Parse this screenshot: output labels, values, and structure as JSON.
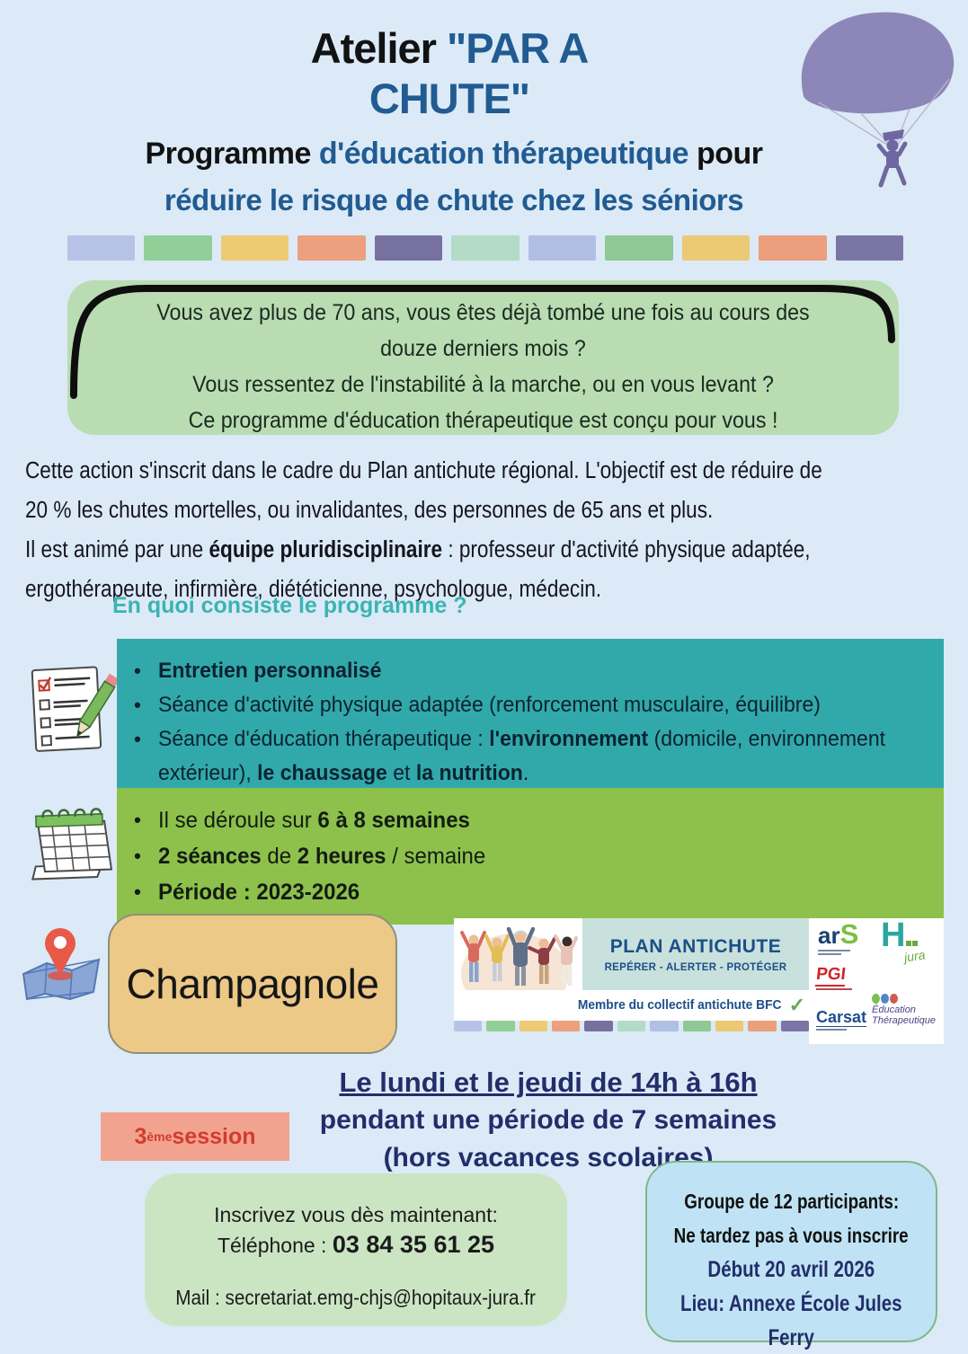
{
  "palette": {
    "page_bg": "#dbeaf6",
    "title_blue": "#215b92",
    "intro_green": "#b9dcb2",
    "teal_heading": "#3ab4b2",
    "program_teal": "#31a9ab",
    "schedule_green": "#8dc14c",
    "location_tan": "#ecc987",
    "navy": "#232d6a",
    "badge_salmon": "#f2a390",
    "badge_red": "#d23b2e",
    "contact_green": "#cbe5c3",
    "info_blue": "#bfe3f4",
    "parachute_purple": "#8d86b8"
  },
  "header": {
    "title_black": "Atelier ",
    "title_blue_1": "\"PAR A",
    "title_blue_2": "CHUTE\"",
    "subtitle_1_black": "Programme ",
    "subtitle_1_blue": "d'éducation thérapeutique ",
    "subtitle_1_black2": "pour",
    "subtitle_2": "réduire le risque de chute chez les séniors"
  },
  "strip_colors": [
    "#b7c3e6",
    "#92ce97",
    "#eeca72",
    "#eda07d",
    "#77719f",
    "#b3dbc6",
    "#b0bfe3",
    "#8ec895",
    "#ecc974",
    "#eb9f7d",
    "#7b75a6"
  ],
  "intro_box": {
    "lines": [
      "Vous avez plus de 70 ans, vous êtes déjà tombé une fois au cours des",
      "douze derniers mois ?",
      "Vous ressentez de l'instabilité à la marche, ou en vous levant ?",
      "Ce programme d'éducation thérapeutique est conçu pour vous !"
    ]
  },
  "about": {
    "rows": [
      {
        "segs": [
          {
            "t": "Cette action s'inscrit dans le cadre du Plan antichute régional. L'objectif est de réduire de"
          }
        ]
      },
      {
        "segs": [
          {
            "t": "20 % les chutes mortelles, ou invalidantes, des personnes de 65 ans et plus."
          }
        ]
      },
      {
        "segs": [
          {
            "t": "Il est animé par une "
          },
          {
            "t": "équipe pluridisciplinaire",
            "b": true
          },
          {
            "t": " : professeur d'activité physique adaptée,"
          }
        ]
      },
      {
        "segs": [
          {
            "t": "ergothérapeute, infirmière, diététicienne, psychologue, médecin."
          }
        ]
      }
    ]
  },
  "section_heading": "En quoi consiste le programme ?",
  "program_box": {
    "rows": [
      {
        "bullet": true,
        "segs": [
          {
            "t": "Entretien personnalisé",
            "b": true
          }
        ]
      },
      {
        "bullet": true,
        "segs": [
          {
            "t": "Séance d'activité physique adaptée (renforcement musculaire, équilibre)"
          }
        ]
      },
      {
        "bullet": true,
        "segs": [
          {
            "t": "Séance d'éducation thérapeutique : "
          },
          {
            "t": "l'environnement",
            "b": true
          },
          {
            "t": " (domicile, environnement"
          }
        ]
      },
      {
        "segs": [
          {
            "t": "extérieur), "
          },
          {
            "t": "le chaussage",
            "b": true
          },
          {
            "t": " et "
          },
          {
            "t": "la nutrition",
            "b": true
          },
          {
            "t": "."
          }
        ]
      }
    ]
  },
  "schedule_box": {
    "rows": [
      {
        "bullet": true,
        "segs": [
          {
            "t": "Il se déroule sur "
          },
          {
            "t": "6 à 8 semaines",
            "b": true
          }
        ]
      },
      {
        "bullet": true,
        "segs": [
          {
            "t": "2 séances",
            "b": true
          },
          {
            "t": " de "
          },
          {
            "t": "2 heures",
            "b": true
          },
          {
            "t": " / semaine"
          }
        ]
      },
      {
        "bullet": true,
        "segs": [
          {
            "t": "Période : 2023-2026",
            "b": true
          }
        ]
      }
    ]
  },
  "location": {
    "name": "Champagnole"
  },
  "banner": {
    "plan_title": "PLAN ANTICHUTE",
    "plan_subtitle": "REPÉRER - ALERTER - PROTÉGER",
    "member": "Membre du collectif antichute BFC",
    "check": "✓",
    "logos": {
      "ars_ar": "ar",
      "ars_s": "S",
      "hjura_h": "H",
      "hjura_jura": "jura",
      "pgi": "PGI",
      "carsat": "Carsat",
      "edu_1": "Éducation",
      "edu_2": "Thérapeutique"
    }
  },
  "session": {
    "line1": "Le lundi et le jeudi de 14h à 16h",
    "line2": "pendant une période de 7 semaines",
    "line3": "(hors vacances scolaires)"
  },
  "badge": {
    "num": "3",
    "sup": "ème",
    "label": " session"
  },
  "contact": {
    "line1": "Inscrivez vous dès maintenant:",
    "phone_label": "Téléphone : ",
    "phone": "03 84 35 61 25",
    "mail": "Mail : secretariat.emg-chjs@hopitaux-jura.fr"
  },
  "info": {
    "line1": "Groupe de 12 participants:",
    "line2": "Ne tardez pas à vous inscrire",
    "line3": "Début 20 avril 2026",
    "line4": "Lieu: Annexe École Jules",
    "line5": "Ferry"
  }
}
